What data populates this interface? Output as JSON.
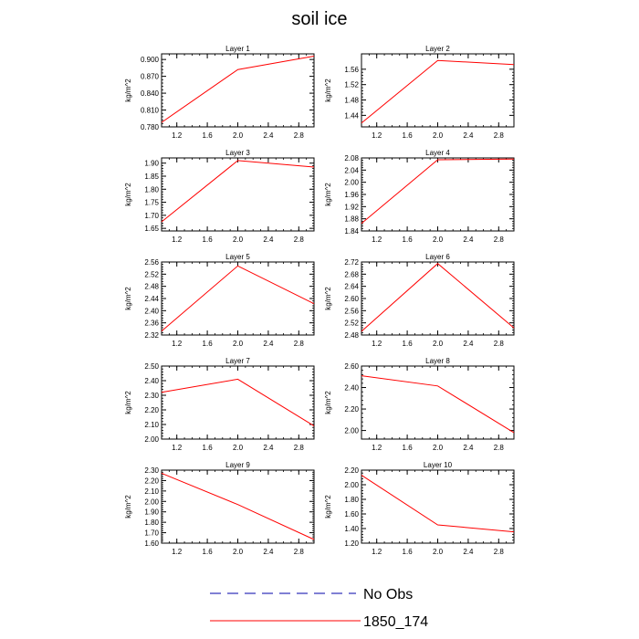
{
  "title": "soil ice",
  "legend": {
    "items": [
      {
        "label": "No Obs",
        "style": "dashed",
        "color": "#0000aa"
      },
      {
        "label": "1850_174",
        "style": "solid",
        "color": "#ff0000"
      }
    ]
  },
  "chart_data": [
    {
      "type": "line",
      "title": "Layer 1",
      "ylabel": "kg/m^2",
      "xlim": [
        1.0,
        3.0
      ],
      "xticks": [
        "1.2",
        "1.6",
        "2.0",
        "2.4",
        "2.8"
      ],
      "ylim": [
        0.78,
        0.91
      ],
      "yticks": [
        "0.780",
        "0.810",
        "0.840",
        "0.870",
        "0.900"
      ],
      "x": [
        1,
        2,
        3
      ],
      "series": [
        {
          "name": "1850_174",
          "values": [
            0.788,
            0.882,
            0.906
          ]
        }
      ]
    },
    {
      "type": "line",
      "title": "Layer 2",
      "ylabel": "kg/m^2",
      "xlim": [
        1.0,
        3.0
      ],
      "xticks": [
        "1.2",
        "1.6",
        "2.0",
        "2.4",
        "2.8"
      ],
      "ylim": [
        1.41,
        1.6
      ],
      "yticks": [
        "1.44",
        "1.48",
        "1.52",
        "1.56"
      ],
      "x": [
        1,
        2,
        3
      ],
      "series": [
        {
          "name": "1850_174",
          "values": [
            1.42,
            1.583,
            1.572
          ]
        }
      ]
    },
    {
      "type": "line",
      "title": "Layer 3",
      "ylabel": "kg/m^2",
      "xlim": [
        1.0,
        3.0
      ],
      "xticks": [
        "1.2",
        "1.6",
        "2.0",
        "2.4",
        "2.8"
      ],
      "ylim": [
        1.64,
        1.92
      ],
      "yticks": [
        "1.65",
        "1.70",
        "1.75",
        "1.80",
        "1.85",
        "1.90"
      ],
      "x": [
        1,
        2,
        3
      ],
      "series": [
        {
          "name": "1850_174",
          "values": [
            1.675,
            1.91,
            1.885
          ]
        }
      ]
    },
    {
      "type": "line",
      "title": "Layer 4",
      "ylabel": "kg/m^2",
      "xlim": [
        1.0,
        3.0
      ],
      "xticks": [
        "1.2",
        "1.6",
        "2.0",
        "2.4",
        "2.8"
      ],
      "ylim": [
        1.84,
        2.08
      ],
      "yticks": [
        "1.84",
        "1.88",
        "1.92",
        "1.96",
        "2.00",
        "2.04",
        "2.08"
      ],
      "x": [
        1,
        2,
        3
      ],
      "series": [
        {
          "name": "1850_174",
          "values": [
            1.865,
            2.074,
            2.076
          ]
        }
      ]
    },
    {
      "type": "line",
      "title": "Layer 5",
      "ylabel": "kg/m^2",
      "xlim": [
        1.0,
        3.0
      ],
      "xticks": [
        "1.2",
        "1.6",
        "2.0",
        "2.4",
        "2.8"
      ],
      "ylim": [
        2.32,
        2.56
      ],
      "yticks": [
        "2.32",
        "2.36",
        "2.40",
        "2.44",
        "2.48",
        "2.52",
        "2.56"
      ],
      "x": [
        1,
        2,
        3
      ],
      "series": [
        {
          "name": "1850_174",
          "values": [
            2.333,
            2.547,
            2.423
          ]
        }
      ]
    },
    {
      "type": "line",
      "title": "Layer 6",
      "ylabel": "kg/m^2",
      "xlim": [
        1.0,
        3.0
      ],
      "xticks": [
        "1.2",
        "1.6",
        "2.0",
        "2.4",
        "2.8"
      ],
      "ylim": [
        2.48,
        2.72
      ],
      "yticks": [
        "2.48",
        "2.52",
        "2.56",
        "2.60",
        "2.64",
        "2.68",
        "2.72"
      ],
      "x": [
        1,
        2,
        3
      ],
      "series": [
        {
          "name": "1850_174",
          "values": [
            2.492,
            2.715,
            2.503
          ]
        }
      ]
    },
    {
      "type": "line",
      "title": "Layer 7",
      "ylabel": "kg/m^2",
      "xlim": [
        1.0,
        3.0
      ],
      "xticks": [
        "1.2",
        "1.6",
        "2.0",
        "2.4",
        "2.8"
      ],
      "ylim": [
        2.0,
        2.5
      ],
      "yticks": [
        "2.00",
        "2.10",
        "2.20",
        "2.30",
        "2.40",
        "2.50"
      ],
      "x": [
        1,
        2,
        3
      ],
      "series": [
        {
          "name": "1850_174",
          "values": [
            2.32,
            2.41,
            2.09
          ]
        }
      ]
    },
    {
      "type": "line",
      "title": "Layer 8",
      "ylabel": "kg/m^2",
      "xlim": [
        1.0,
        3.0
      ],
      "xticks": [
        "1.2",
        "1.6",
        "2.0",
        "2.4",
        "2.8"
      ],
      "ylim": [
        1.92,
        2.6
      ],
      "yticks": [
        "2.00",
        "2.20",
        "2.40",
        "2.60"
      ],
      "x": [
        1,
        2,
        3
      ],
      "series": [
        {
          "name": "1850_174",
          "values": [
            2.51,
            2.415,
            1.98
          ]
        }
      ]
    },
    {
      "type": "line",
      "title": "Layer 9",
      "ylabel": "kg/m^2",
      "xlim": [
        1.0,
        3.0
      ],
      "xticks": [
        "1.2",
        "1.6",
        "2.0",
        "2.4",
        "2.8"
      ],
      "ylim": [
        1.6,
        2.3
      ],
      "yticks": [
        "1.60",
        "1.70",
        "1.80",
        "1.90",
        "2.00",
        "2.10",
        "2.20",
        "2.30"
      ],
      "x": [
        1,
        2,
        3
      ],
      "series": [
        {
          "name": "1850_174",
          "values": [
            2.27,
            1.97,
            1.635
          ]
        }
      ]
    },
    {
      "type": "line",
      "title": "Layer 10",
      "ylabel": "kg/m^2",
      "xlim": [
        1.0,
        3.0
      ],
      "xticks": [
        "1.2",
        "1.6",
        "2.0",
        "2.4",
        "2.8"
      ],
      "ylim": [
        1.2,
        2.2
      ],
      "yticks": [
        "1.20",
        "1.40",
        "1.60",
        "1.80",
        "2.00",
        "2.20"
      ],
      "x": [
        1,
        2,
        3
      ],
      "series": [
        {
          "name": "1850_174",
          "values": [
            2.13,
            1.45,
            1.355
          ]
        }
      ]
    }
  ]
}
